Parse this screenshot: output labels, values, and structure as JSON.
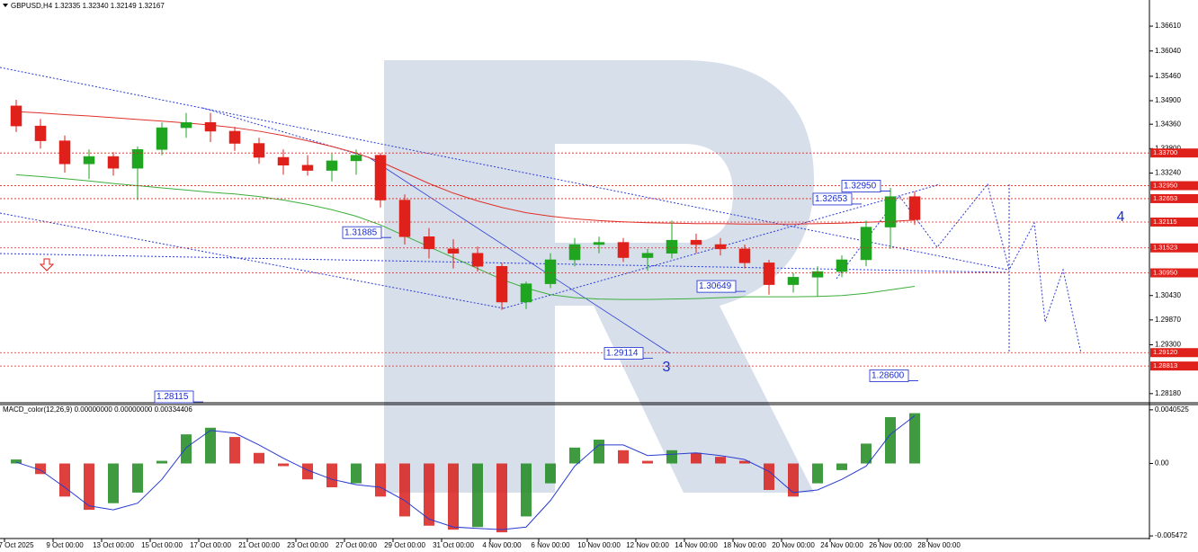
{
  "header": "GBPUSD,H4  1.32335 1.32340 1.32149 1.32167",
  "chart_data": [
    {
      "type": "candlestick",
      "categories": [
        "7 Oct 2025",
        null,
        "9 Oct 00:00",
        null,
        "13 Oct 00:00",
        null,
        "15 Oct 00:00",
        null,
        "17 Oct 00:00",
        null,
        "21 Oct 00:00",
        null,
        "23 Oct 00:00",
        null,
        "27 Oct 00:00",
        null,
        "29 Oct 00:00",
        null,
        "31 Oct 00:00",
        null,
        "4 Nov 00:00",
        null,
        "6 Nov 00:00",
        null,
        "10 Nov 00:00",
        null,
        "12 Nov 00:00",
        null,
        "14 Nov 00:00",
        null,
        "18 Nov 00:00",
        null,
        "20 Nov 00:00",
        null,
        "24 Nov 00:00",
        null,
        "26 Nov 00:00",
        null,
        "28 Nov 00:00"
      ],
      "open": [
        1.3478,
        1.3432,
        1.3398,
        1.3345,
        1.3362,
        1.3335,
        1.3378,
        1.3428,
        1.344,
        1.342,
        1.3392,
        1.336,
        1.3342,
        1.333,
        1.3352,
        1.3365,
        1.3262,
        1.3178,
        1.315,
        1.314,
        1.311,
        1.3028,
        1.307,
        1.3125,
        1.316,
        1.3165,
        1.313,
        1.314,
        1.317,
        1.316,
        1.315,
        1.3118,
        1.3068,
        1.3085,
        1.3098,
        1.3125,
        1.32,
        1.327,
        null
      ],
      "high": [
        1.3492,
        1.3448,
        1.341,
        1.3378,
        1.3372,
        1.3385,
        1.344,
        1.3462,
        1.3462,
        1.343,
        1.3405,
        1.3378,
        1.3365,
        1.3368,
        1.3378,
        1.337,
        1.3275,
        1.3198,
        1.3172,
        1.3155,
        1.3118,
        1.3075,
        1.314,
        1.3175,
        1.3178,
        1.3175,
        1.315,
        1.3215,
        1.3185,
        1.3175,
        1.316,
        1.3125,
        1.3095,
        1.311,
        1.3135,
        1.3215,
        1.329,
        1.3282,
        null
      ],
      "low": [
        1.3418,
        1.338,
        1.3325,
        1.331,
        1.3318,
        1.3262,
        1.3365,
        1.3405,
        1.3395,
        1.3375,
        1.3345,
        1.332,
        1.3318,
        1.3305,
        1.332,
        1.3245,
        1.316,
        1.3128,
        1.3105,
        1.3098,
        1.301,
        1.3012,
        1.306,
        1.311,
        1.314,
        1.312,
        1.31,
        1.3128,
        1.314,
        1.3135,
        1.3105,
        1.3045,
        1.305,
        1.304,
        1.3085,
        1.311,
        1.315,
        1.3205,
        null
      ],
      "close": [
        1.3432,
        1.3398,
        1.3345,
        1.3362,
        1.3335,
        1.3378,
        1.3428,
        1.344,
        1.342,
        1.3392,
        1.336,
        1.3342,
        1.333,
        1.3352,
        1.3365,
        1.3262,
        1.3178,
        1.315,
        1.314,
        1.311,
        1.3028,
        1.307,
        1.3125,
        1.316,
        1.3165,
        1.313,
        1.314,
        1.317,
        1.316,
        1.315,
        1.3118,
        1.3068,
        1.3085,
        1.3098,
        1.3125,
        1.32,
        1.327,
        1.3217,
        null
      ],
      "up_color": "#1fa51f",
      "down_color": "#e0201b",
      "overlays": [
        {
          "color": "#e0302a",
          "values": [
            1.3465,
            1.3462,
            1.3458,
            1.3455,
            1.3451,
            1.3447,
            1.3443,
            1.3439,
            1.3434,
            1.3428,
            1.342,
            1.341,
            1.3398,
            1.3385,
            1.337,
            1.335,
            1.3325,
            1.33,
            1.3278,
            1.326,
            1.3245,
            1.3233,
            1.3225,
            1.3219,
            1.3215,
            1.3212,
            1.321,
            1.3209,
            1.3208,
            1.3208,
            1.3207,
            1.3207,
            1.3207,
            1.3208,
            1.3209,
            1.3211,
            1.3213,
            1.3216,
            null
          ]
        },
        {
          "color": "#3cae3c",
          "values": [
            1.332,
            1.3316,
            1.3311,
            1.3306,
            1.33,
            1.3295,
            1.329,
            1.3285,
            1.328,
            1.3276,
            1.327,
            1.3262,
            1.3252,
            1.324,
            1.3225,
            1.3205,
            1.318,
            1.3155,
            1.313,
            1.3105,
            1.308,
            1.306,
            1.3045,
            1.3038,
            1.3035,
            1.3034,
            1.3034,
            1.3035,
            1.3036,
            1.3038,
            1.304,
            1.304,
            1.304,
            1.3041,
            1.3043,
            1.3048,
            1.3056,
            1.3064,
            null
          ]
        }
      ],
      "ylim": [
        1.2797,
        1.3721
      ],
      "yticks": [
        {
          "value": 1.3661,
          "label": "1.36610"
        },
        {
          "value": 1.3604,
          "label": "1.36040"
        },
        {
          "value": 1.3546,
          "label": "1.35460"
        },
        {
          "value": 1.349,
          "label": "1.34900"
        },
        {
          "value": 1.3436,
          "label": "1.34360"
        },
        {
          "value": 1.338,
          "label": "1.33800"
        },
        {
          "value": 1.3324,
          "label": "1.33240"
        },
        {
          "value": 1.3043,
          "label": "1.30430"
        },
        {
          "value": 1.2987,
          "label": "1.29870"
        },
        {
          "value": 1.293,
          "label": "1.29300"
        },
        {
          "value": 1.2818,
          "label": "1.28180"
        }
      ],
      "levels": [
        {
          "value": 1.337,
          "label": "1.33700"
        },
        {
          "value": 1.3295,
          "label": "1.32950"
        },
        {
          "value": 1.32653,
          "label": "1.32653"
        },
        {
          "value": 1.32115,
          "label": "1.32115"
        },
        {
          "value": 1.31523,
          "label": "1.31523"
        },
        {
          "value": 1.3095,
          "label": "1.30950"
        },
        {
          "value": 1.2912,
          "label": "1.29120"
        },
        {
          "value": 1.28813,
          "label": "1.28813"
        }
      ],
      "level_color": "#e0201b",
      "annotations": [
        {
          "value": 1.3295,
          "label": "1.32950"
        },
        {
          "value": 1.32653,
          "label": "1.32653"
        },
        {
          "value": 1.31885,
          "label": "1.31885"
        },
        {
          "value": 1.30649,
          "label": "1.30649"
        },
        {
          "value": 1.29114,
          "label": "1.29114"
        },
        {
          "value": 1.286,
          "label": "1.28600"
        },
        {
          "value": 1.28115,
          "label": "1.28115"
        }
      ],
      "wave_labels": [
        "3",
        "4"
      ]
    },
    {
      "type": "macd",
      "title": "MACD_color(12,26,9) 0.00000000 0.00000000 0.00334406",
      "histogram": [
        0.0003,
        -0.0008,
        -0.0025,
        -0.0035,
        -0.003,
        -0.0022,
        0.0002,
        0.0022,
        0.0027,
        0.002,
        0.0008,
        -0.0002,
        -0.0012,
        -0.0018,
        -0.0015,
        -0.0025,
        -0.004,
        -0.0047,
        -0.005,
        -0.0048,
        -0.0052,
        -0.004,
        -0.0015,
        0.0012,
        0.0018,
        0.001,
        0.0002,
        0.001,
        0.0008,
        0.0005,
        0.0002,
        -0.002,
        -0.0025,
        -0.0015,
        -0.0005,
        0.0015,
        0.0035,
        0.0038,
        null
      ],
      "signal": [
        0.0001,
        -0.0005,
        -0.0018,
        -0.0032,
        -0.0035,
        -0.003,
        -0.0012,
        0.0012,
        0.0025,
        0.0023,
        0.0014,
        0.0004,
        -0.0005,
        -0.0012,
        -0.0016,
        -0.0018,
        -0.0028,
        -0.0042,
        -0.0048,
        -0.0049,
        -0.005,
        -0.0048,
        -0.0028,
        -0.0002,
        0.0014,
        0.0014,
        0.0006,
        0.0007,
        0.0008,
        0.0006,
        0.0003,
        -0.0006,
        -0.0022,
        -0.002,
        -0.0012,
        -0.0002,
        0.0022,
        0.0036,
        null
      ],
      "up_color": "#1e8a1e",
      "down_color": "#d8201b",
      "signal_color": "#2a3bd0",
      "ylim": [
        -0.0056,
        0.00445
      ],
      "yticks": [
        0.0040525,
        {
          "value": 0,
          "label": "0.00"
        },
        -0.005472
      ]
    }
  ]
}
